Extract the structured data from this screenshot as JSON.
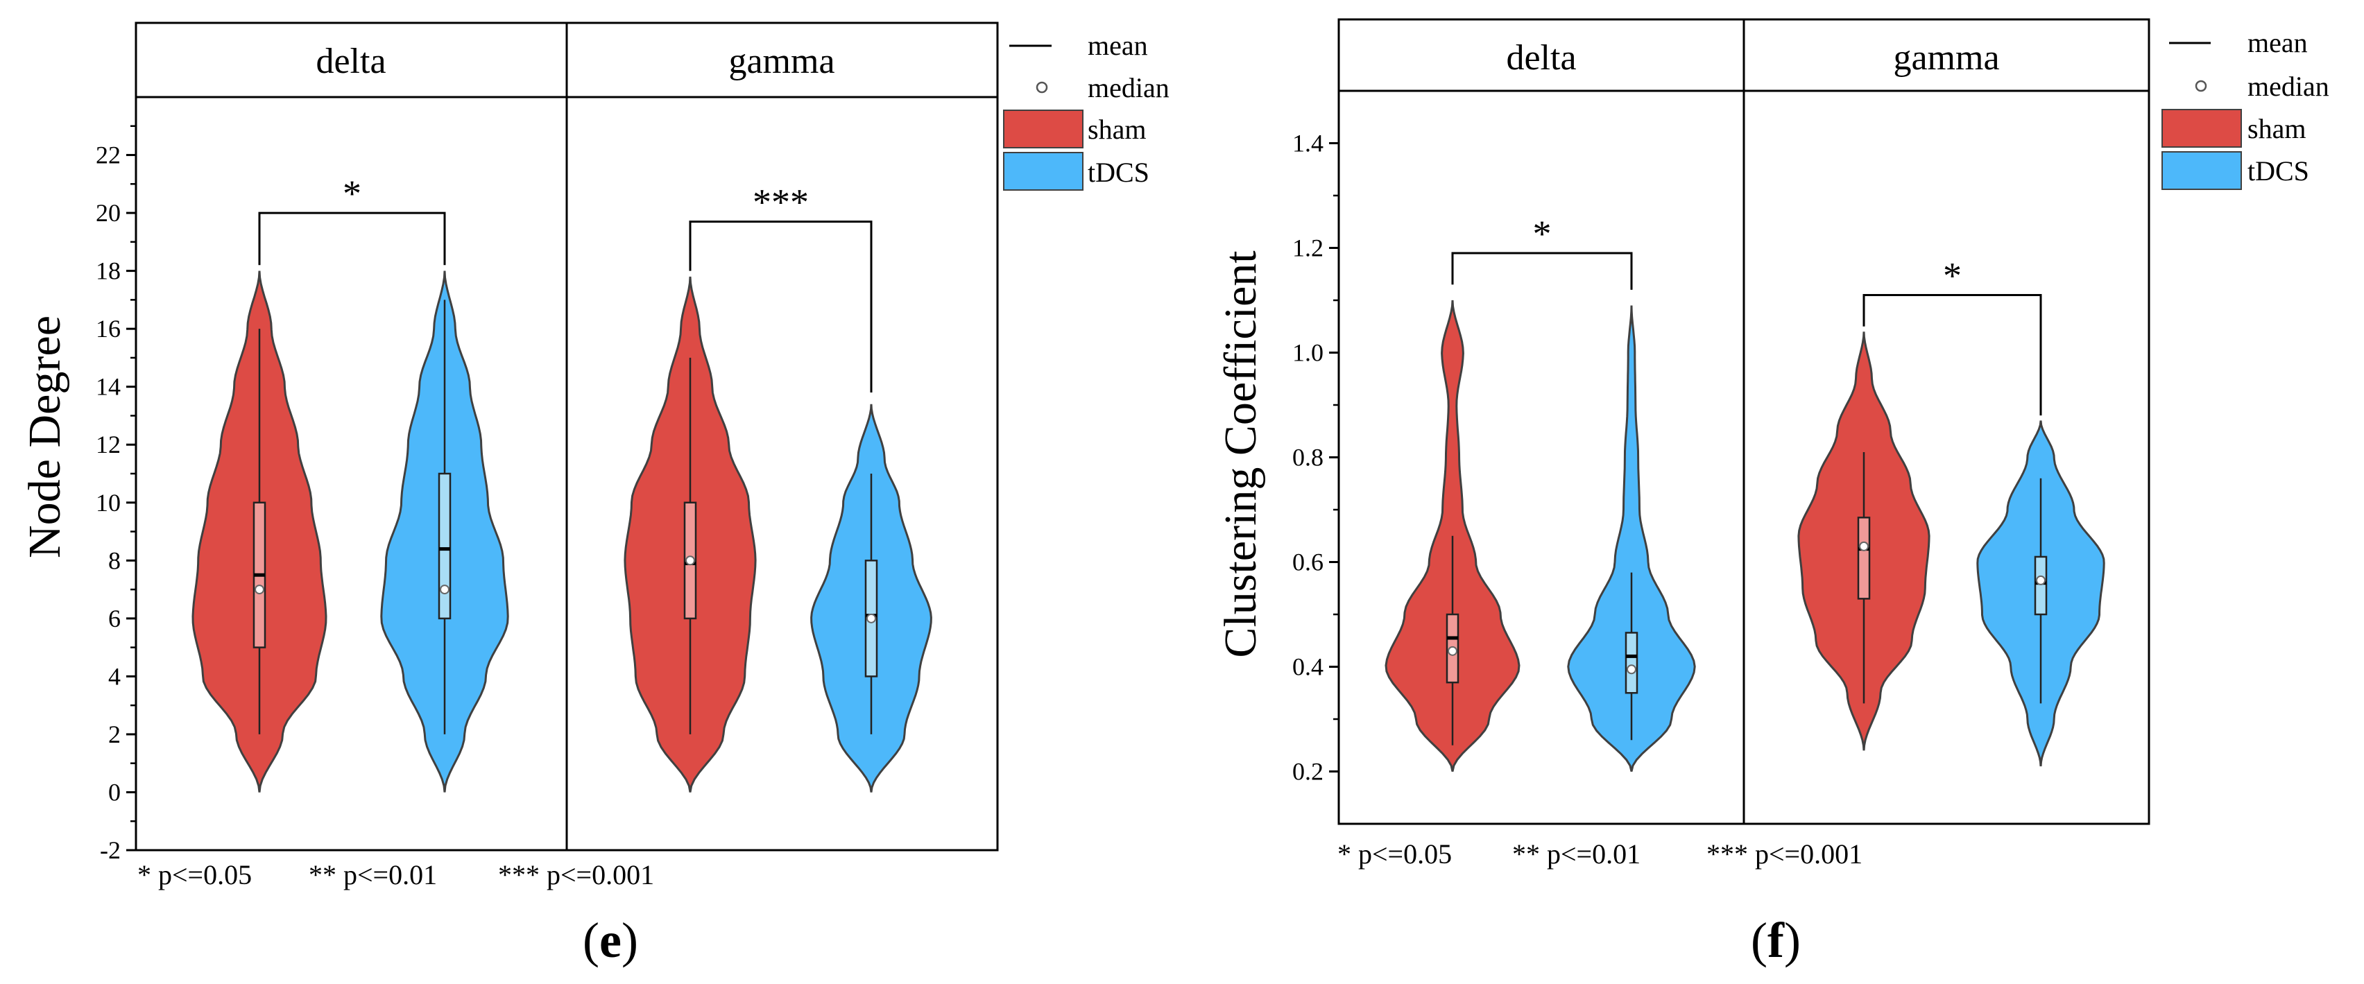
{
  "colors": {
    "sham": "#DD4B45",
    "tDCS": "#4DB8FA",
    "sham_box": "#F09A98",
    "tDCS_box": "#A9DDF5",
    "outline": "#404040"
  },
  "figures": [
    {
      "ylabel": "Node Degree",
      "panels": [
        "delta",
        "gamma"
      ],
      "legend": {
        "mean": "mean",
        "median": "median",
        "sham": "sham",
        "tDCS": "tDCS"
      },
      "notes": [
        "* p<=0.05",
        "** p<=0.01",
        "*** p<=0.001"
      ],
      "caption": {
        "open": "(",
        "letter": "e",
        "close": ")"
      },
      "significance": [
        "*",
        "***"
      ]
    },
    {
      "ylabel": "Clustering Coefficient",
      "panels": [
        "delta",
        "gamma"
      ],
      "legend": {
        "mean": "mean",
        "median": "median",
        "sham": "sham",
        "tDCS": "tDCS"
      },
      "notes": [
        "* p<=0.05",
        "** p<=0.01",
        "*** p<=0.001"
      ],
      "caption": {
        "open": "(",
        "letter": "f",
        "close": ")"
      },
      "significance": [
        "*",
        "*"
      ]
    }
  ],
  "chart_data": [
    {
      "type": "violin",
      "ylabel": "Node Degree",
      "ylim": [
        -2,
        24
      ],
      "yticks": [
        -2,
        0,
        2,
        4,
        6,
        8,
        10,
        12,
        14,
        16,
        18,
        20,
        22
      ],
      "groups": [
        {
          "panel": "delta",
          "series": [
            {
              "name": "sham",
              "mean": 7.5,
              "median": 7,
              "q1": 5,
              "q3": 10,
              "whisker_low": 2,
              "whisker_high": 16,
              "min": 0,
              "max": 18,
              "density_y": [
                0,
                2,
                4,
                6,
                8,
                10,
                12,
                14,
                16,
                18
              ],
              "density_w": [
                0,
                0.35,
                0.85,
                1.0,
                0.92,
                0.78,
                0.58,
                0.38,
                0.18,
                0
              ]
            },
            {
              "name": "tDCS",
              "mean": 8.4,
              "median": 7,
              "q1": 6,
              "q3": 11,
              "whisker_low": 2,
              "whisker_high": 17,
              "min": 0,
              "max": 18,
              "density_y": [
                0,
                2,
                4,
                6,
                8,
                10,
                12,
                14,
                16,
                18
              ],
              "density_w": [
                0,
                0.3,
                0.62,
                0.95,
                0.88,
                0.65,
                0.55,
                0.38,
                0.16,
                0
              ]
            }
          ],
          "significance": {
            "label": "*",
            "bracket_top": 20,
            "left_end": 18.2,
            "right_end": 18.2
          }
        },
        {
          "panel": "gamma",
          "series": [
            {
              "name": "sham",
              "mean": 7.9,
              "median": 8,
              "q1": 6,
              "q3": 10,
              "whisker_low": 2,
              "whisker_high": 15,
              "min": 0,
              "max": 17.8,
              "density_y": [
                0,
                2,
                4,
                6,
                8,
                10,
                12,
                14,
                16,
                17.8
              ],
              "density_w": [
                0,
                0.5,
                0.82,
                0.9,
                0.98,
                0.88,
                0.58,
                0.33,
                0.14,
                0
              ]
            },
            {
              "name": "tDCS",
              "mean": 6.1,
              "median": 6,
              "q1": 4,
              "q3": 8,
              "whisker_low": 2,
              "whisker_high": 11,
              "min": 0,
              "max": 13.4,
              "density_y": [
                0,
                2,
                4,
                6,
                8,
                10,
                11.5,
                13.4
              ],
              "density_w": [
                0,
                0.5,
                0.72,
                0.9,
                0.62,
                0.42,
                0.2,
                0
              ]
            }
          ],
          "significance": {
            "label": "***",
            "bracket_top": 19.7,
            "left_end": 18,
            "right_end": 13.8
          }
        }
      ]
    },
    {
      "type": "violin",
      "ylabel": "Clustering Coefficient",
      "ylim": [
        0.1,
        1.5
      ],
      "yticks": [
        0.2,
        0.4,
        0.6,
        0.8,
        1.0,
        1.2,
        1.4
      ],
      "groups": [
        {
          "panel": "delta",
          "series": [
            {
              "name": "sham",
              "mean": 0.455,
              "median": 0.43,
              "q1": 0.37,
              "q3": 0.5,
              "whisker_low": 0.25,
              "whisker_high": 0.65,
              "min": 0.2,
              "max": 1.1,
              "density_y": [
                0.2,
                0.3,
                0.4,
                0.5,
                0.6,
                0.7,
                0.8,
                0.9,
                1.0,
                1.1
              ],
              "density_w": [
                0,
                0.55,
                1.0,
                0.72,
                0.35,
                0.15,
                0.1,
                0.06,
                0.16,
                0
              ]
            },
            {
              "name": "tDCS",
              "mean": 0.42,
              "median": 0.395,
              "q1": 0.35,
              "q3": 0.465,
              "whisker_low": 0.26,
              "whisker_high": 0.58,
              "min": 0.2,
              "max": 1.09,
              "density_y": [
                0.2,
                0.3,
                0.4,
                0.5,
                0.6,
                0.7,
                0.8,
                0.9,
                1.0,
                1.09
              ],
              "density_w": [
                0,
                0.6,
                0.95,
                0.55,
                0.25,
                0.12,
                0.1,
                0.06,
                0.05,
                0
              ]
            }
          ],
          "significance": {
            "label": "*",
            "bracket_top": 1.19,
            "left_end": 1.13,
            "right_end": 1.12
          }
        },
        {
          "panel": "gamma",
          "series": [
            {
              "name": "sham",
              "mean": 0.625,
              "median": 0.63,
              "q1": 0.53,
              "q3": 0.685,
              "whisker_low": 0.33,
              "whisker_high": 0.81,
              "min": 0.24,
              "max": 1.04,
              "density_y": [
                0.24,
                0.35,
                0.45,
                0.55,
                0.65,
                0.75,
                0.85,
                0.95,
                1.04
              ],
              "density_w": [
                0,
                0.25,
                0.72,
                0.92,
                0.98,
                0.7,
                0.4,
                0.12,
                0
              ]
            },
            {
              "name": "tDCS",
              "mean": 0.56,
              "median": 0.565,
              "q1": 0.5,
              "q3": 0.61,
              "whisker_low": 0.33,
              "whisker_high": 0.76,
              "min": 0.21,
              "max": 0.87,
              "density_y": [
                0.21,
                0.3,
                0.4,
                0.5,
                0.6,
                0.7,
                0.8,
                0.87
              ],
              "density_w": [
                0,
                0.2,
                0.45,
                0.88,
                0.95,
                0.5,
                0.2,
                0
              ]
            }
          ],
          "significance": {
            "label": "*",
            "bracket_top": 1.11,
            "left_end": 1.05,
            "right_end": 0.88
          }
        }
      ]
    }
  ]
}
